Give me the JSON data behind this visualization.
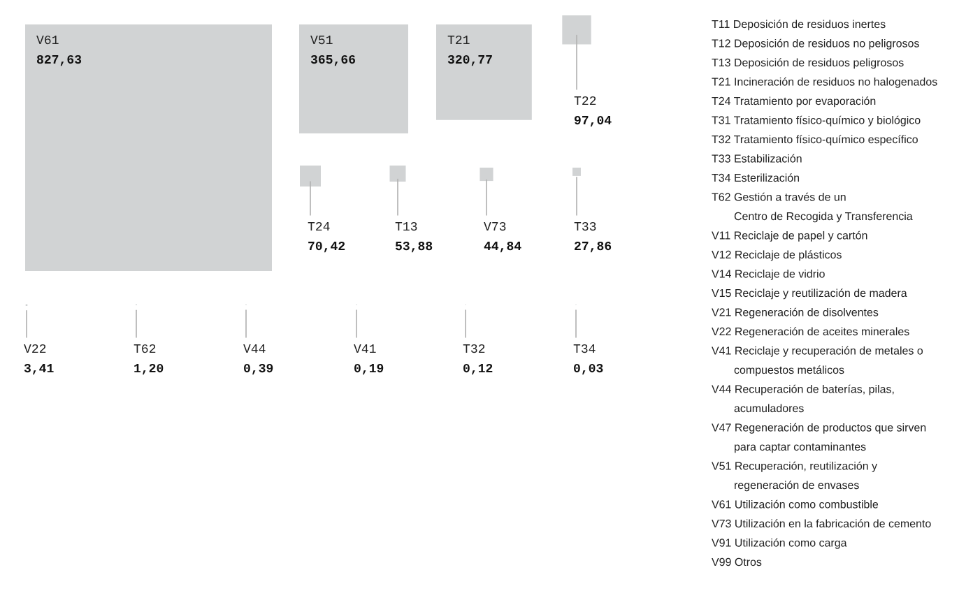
{
  "chart_data": {
    "type": "other",
    "categories": [
      "V61",
      "V51",
      "T21",
      "T22",
      "T24",
      "T13",
      "V73",
      "T33",
      "V22",
      "T62",
      "V44",
      "V41",
      "T32",
      "T34"
    ],
    "values": [
      827.63,
      365.66,
      320.77,
      97.04,
      70.42,
      53.88,
      44.84,
      27.86,
      3.41,
      1.2,
      0.39,
      0.19,
      0.12,
      0.03
    ],
    "value_labels": [
      "827,63",
      "365,66",
      "320,77",
      "97,04",
      "70,42",
      "53,88",
      "44,84",
      "27,86",
      "3,41",
      "1,20",
      "0,39",
      "0,19",
      "0,12",
      "0,03"
    ],
    "color": "#d1d3d4",
    "annotations": [
      "T11 Deposición de residuos inertes",
      "T12 Deposición de residuos no peligrosos",
      "T13 Deposición de residuos peligrosos",
      "T21 Incineración de residuos no halogenados",
      "T24 Tratamiento por evaporación",
      "T31 Tratamiento físico-químico y biológico",
      "T32 Tratamiento físico-químico específico",
      "T33 Estabilización",
      "T34 Esterilización",
      "T62 Gestión a través de un\nCentro de Recogida y Transferencia",
      "V11 Reciclaje de papel y cartón",
      "V12 Reciclaje de plásticos",
      "V14 Reciclaje de vidrio",
      "V15 Reciclaje y reutilización de madera",
      "V21 Regeneración de disolventes",
      "V22 Regeneración de aceites minerales",
      "V41 Reciclaje y recuperación de metales o\ncompuestos metálicos",
      "V44 Recuperación de baterías, pilas,\nacumuladores",
      "V47 Regeneración de productos que sirven\npara captar contaminantes",
      "V51 Recuperación, reutilización y\nregeneración de envases",
      "V61 Utilización como combustible",
      "V73 Utilización en la fabricación de cemento",
      "V91 Utilización como carga",
      "V99 Otros"
    ]
  }
}
